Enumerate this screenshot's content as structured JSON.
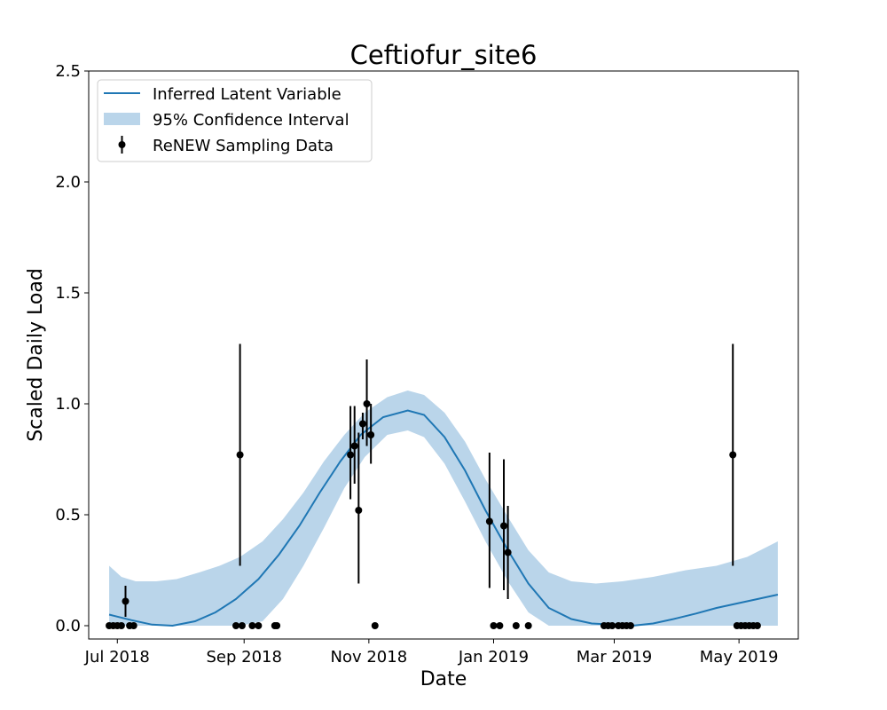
{
  "chart_data": {
    "type": "line",
    "title": "Ceftiofur_site6",
    "xlabel": "Date",
    "ylabel": "Scaled Daily Load",
    "xlim": [
      "2018-06-17",
      "2019-05-30"
    ],
    "ylim": [
      -0.06,
      2.5
    ],
    "xticks": [
      {
        "date": "2018-07-01",
        "label": "Jul 2018"
      },
      {
        "date": "2018-09-01",
        "label": "Sep 2018"
      },
      {
        "date": "2018-11-01",
        "label": "Nov 2018"
      },
      {
        "date": "2019-01-01",
        "label": "Jan 2019"
      },
      {
        "date": "2019-03-01",
        "label": "Mar 2019"
      },
      {
        "date": "2019-05-01",
        "label": "May 2019"
      }
    ],
    "yticks": [
      "0.0",
      "0.5",
      "1.0",
      "1.5",
      "2.0",
      "2.5"
    ],
    "grid": false,
    "legend": {
      "position": "top-left",
      "entries": [
        "Inferred Latent Variable",
        "95% Confidence Interval",
        "ReNEW Sampling Data"
      ]
    },
    "colors": {
      "line": "#1f77b4",
      "band": "#bad5ea",
      "points": "#000000"
    },
    "series": [
      {
        "name": "Inferred Latent Variable",
        "kind": "line",
        "points": [
          {
            "x": "2018-06-27",
            "y": 0.05
          },
          {
            "x": "2018-07-08",
            "y": 0.025
          },
          {
            "x": "2018-07-18",
            "y": 0.005
          },
          {
            "x": "2018-07-28",
            "y": 0.0
          },
          {
            "x": "2018-08-08",
            "y": 0.02
          },
          {
            "x": "2018-08-18",
            "y": 0.06
          },
          {
            "x": "2018-08-28",
            "y": 0.12
          },
          {
            "x": "2018-09-08",
            "y": 0.21
          },
          {
            "x": "2018-09-18",
            "y": 0.32
          },
          {
            "x": "2018-09-28",
            "y": 0.45
          },
          {
            "x": "2018-10-08",
            "y": 0.6
          },
          {
            "x": "2018-10-18",
            "y": 0.74
          },
          {
            "x": "2018-10-28",
            "y": 0.86
          },
          {
            "x": "2018-11-08",
            "y": 0.94
          },
          {
            "x": "2018-11-20",
            "y": 0.97
          },
          {
            "x": "2018-11-28",
            "y": 0.95
          },
          {
            "x": "2018-12-08",
            "y": 0.85
          },
          {
            "x": "2018-12-18",
            "y": 0.7
          },
          {
            "x": "2018-12-28",
            "y": 0.52
          },
          {
            "x": "2019-01-08",
            "y": 0.34
          },
          {
            "x": "2019-01-18",
            "y": 0.19
          },
          {
            "x": "2019-01-28",
            "y": 0.08
          },
          {
            "x": "2019-02-08",
            "y": 0.03
          },
          {
            "x": "2019-02-18",
            "y": 0.01
          },
          {
            "x": "2019-02-28",
            "y": 0.005
          },
          {
            "x": "2019-03-10",
            "y": 0.0
          },
          {
            "x": "2019-03-20",
            "y": 0.01
          },
          {
            "x": "2019-03-30",
            "y": 0.03
          },
          {
            "x": "2019-04-10",
            "y": 0.055
          },
          {
            "x": "2019-04-20",
            "y": 0.08
          },
          {
            "x": "2019-04-30",
            "y": 0.1
          },
          {
            "x": "2019-05-10",
            "y": 0.12
          },
          {
            "x": "2019-05-20",
            "y": 0.14
          }
        ]
      },
      {
        "name": "95% Confidence Interval",
        "kind": "band",
        "points": [
          {
            "x": "2018-06-27",
            "lo": 0.0,
            "hi": 0.27
          },
          {
            "x": "2018-07-03",
            "lo": 0.0,
            "hi": 0.22
          },
          {
            "x": "2018-07-10",
            "lo": 0.0,
            "hi": 0.2
          },
          {
            "x": "2018-07-20",
            "lo": 0.0,
            "hi": 0.2
          },
          {
            "x": "2018-07-30",
            "lo": 0.0,
            "hi": 0.21
          },
          {
            "x": "2018-08-10",
            "lo": 0.0,
            "hi": 0.24
          },
          {
            "x": "2018-08-20",
            "lo": 0.0,
            "hi": 0.27
          },
          {
            "x": "2018-08-30",
            "lo": 0.0,
            "hi": 0.31
          },
          {
            "x": "2018-09-10",
            "lo": 0.02,
            "hi": 0.38
          },
          {
            "x": "2018-09-20",
            "lo": 0.12,
            "hi": 0.48
          },
          {
            "x": "2018-09-30",
            "lo": 0.27,
            "hi": 0.6
          },
          {
            "x": "2018-10-10",
            "lo": 0.44,
            "hi": 0.74
          },
          {
            "x": "2018-10-20",
            "lo": 0.62,
            "hi": 0.86
          },
          {
            "x": "2018-10-30",
            "lo": 0.76,
            "hi": 0.96
          },
          {
            "x": "2018-11-10",
            "lo": 0.86,
            "hi": 1.03
          },
          {
            "x": "2018-11-20",
            "lo": 0.88,
            "hi": 1.06
          },
          {
            "x": "2018-11-28",
            "lo": 0.85,
            "hi": 1.04
          },
          {
            "x": "2018-12-08",
            "lo": 0.73,
            "hi": 0.96
          },
          {
            "x": "2018-12-18",
            "lo": 0.56,
            "hi": 0.83
          },
          {
            "x": "2018-12-28",
            "lo": 0.38,
            "hi": 0.66
          },
          {
            "x": "2019-01-08",
            "lo": 0.2,
            "hi": 0.49
          },
          {
            "x": "2019-01-18",
            "lo": 0.06,
            "hi": 0.34
          },
          {
            "x": "2019-01-28",
            "lo": 0.0,
            "hi": 0.24
          },
          {
            "x": "2019-02-08",
            "lo": 0.0,
            "hi": 0.2
          },
          {
            "x": "2019-02-20",
            "lo": 0.0,
            "hi": 0.19
          },
          {
            "x": "2019-03-05",
            "lo": 0.0,
            "hi": 0.2
          },
          {
            "x": "2019-03-20",
            "lo": 0.0,
            "hi": 0.22
          },
          {
            "x": "2019-04-05",
            "lo": 0.0,
            "hi": 0.25
          },
          {
            "x": "2019-04-20",
            "lo": 0.0,
            "hi": 0.27
          },
          {
            "x": "2019-05-05",
            "lo": 0.0,
            "hi": 0.31
          },
          {
            "x": "2019-05-20",
            "lo": 0.0,
            "hi": 0.38
          }
        ]
      },
      {
        "name": "ReNEW Sampling Data",
        "kind": "errorbar",
        "points": [
          {
            "x": "2018-06-27",
            "y": 0.0
          },
          {
            "x": "2018-06-29",
            "y": 0.0
          },
          {
            "x": "2018-07-01",
            "y": 0.0
          },
          {
            "x": "2018-07-03",
            "y": 0.0
          },
          {
            "x": "2018-07-05",
            "y": 0.11,
            "lo": 0.04,
            "hi": 0.18
          },
          {
            "x": "2018-07-07",
            "y": 0.0
          },
          {
            "x": "2018-07-09",
            "y": 0.0
          },
          {
            "x": "2018-08-28",
            "y": 0.0
          },
          {
            "x": "2018-08-30",
            "y": 0.77,
            "lo": 0.27,
            "hi": 1.27
          },
          {
            "x": "2018-08-31",
            "y": 0.0
          },
          {
            "x": "2018-09-05",
            "y": 0.0
          },
          {
            "x": "2018-09-08",
            "y": 0.0
          },
          {
            "x": "2018-09-16",
            "y": 0.0
          },
          {
            "x": "2018-09-17",
            "y": 0.0
          },
          {
            "x": "2018-10-23",
            "y": 0.77,
            "lo": 0.57,
            "hi": 0.99
          },
          {
            "x": "2018-10-25",
            "y": 0.81,
            "lo": 0.64,
            "hi": 0.99
          },
          {
            "x": "2018-10-27",
            "y": 0.52,
            "lo": 0.19,
            "hi": 0.87
          },
          {
            "x": "2018-10-29",
            "y": 0.91,
            "lo": 0.84,
            "hi": 0.96
          },
          {
            "x": "2018-10-31",
            "y": 1.0,
            "lo": 0.81,
            "hi": 1.2
          },
          {
            "x": "2018-11-02",
            "y": 0.86,
            "lo": 0.73,
            "hi": 1.0
          },
          {
            "x": "2018-11-04",
            "y": 0.0
          },
          {
            "x": "2018-12-30",
            "y": 0.47,
            "lo": 0.17,
            "hi": 0.78
          },
          {
            "x": "2019-01-01",
            "y": 0.0
          },
          {
            "x": "2019-01-04",
            "y": 0.0
          },
          {
            "x": "2019-01-06",
            "y": 0.45,
            "lo": 0.16,
            "hi": 0.75
          },
          {
            "x": "2019-01-08",
            "y": 0.33,
            "lo": 0.12,
            "hi": 0.54
          },
          {
            "x": "2019-01-12",
            "y": 0.0
          },
          {
            "x": "2019-01-18",
            "y": 0.0
          },
          {
            "x": "2019-02-24",
            "y": 0.0
          },
          {
            "x": "2019-02-26",
            "y": 0.0
          },
          {
            "x": "2019-02-28",
            "y": 0.0
          },
          {
            "x": "2019-03-03",
            "y": 0.0
          },
          {
            "x": "2019-03-05",
            "y": 0.0
          },
          {
            "x": "2019-03-07",
            "y": 0.0
          },
          {
            "x": "2019-03-09",
            "y": 0.0
          },
          {
            "x": "2019-04-28",
            "y": 0.77,
            "lo": 0.27,
            "hi": 1.27
          },
          {
            "x": "2019-04-30",
            "y": 0.0
          },
          {
            "x": "2019-05-02",
            "y": 0.0
          },
          {
            "x": "2019-05-04",
            "y": 0.0
          },
          {
            "x": "2019-05-06",
            "y": 0.0
          },
          {
            "x": "2019-05-08",
            "y": 0.0
          },
          {
            "x": "2019-05-10",
            "y": 0.0
          }
        ]
      }
    ]
  }
}
